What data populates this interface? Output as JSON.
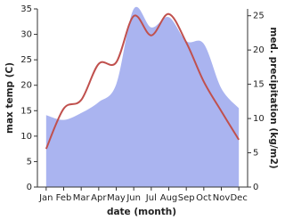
{
  "chart_data": {
    "type": "line-area",
    "x_label": "date (month)",
    "y_label": "max temp (C)",
    "y2_label": "med. precipitation (kg/m2)",
    "categories": [
      "Jan",
      "Feb",
      "Mar",
      "Apr",
      "May",
      "Jun",
      "Jul",
      "Aug",
      "Sep",
      "Oct",
      "Nov",
      "Dec"
    ],
    "series": [
      {
        "name": "max temp",
        "type": "line",
        "color": "#c0504d",
        "values": [
          7.5,
          15.4,
          17.1,
          24.2,
          24.5,
          33.6,
          29.8,
          34.0,
          28.4,
          20.7,
          14.9,
          9.3
        ]
      },
      {
        "name": "precipitation",
        "type": "area",
        "axis": "y2",
        "color": "#aab4f0",
        "values": [
          10.5,
          9.8,
          10.8,
          12.4,
          15.0,
          26.0,
          23.3,
          24.8,
          21.3,
          20.9,
          14.4,
          11.5
        ]
      }
    ],
    "ylim": [
      0,
      35
    ],
    "yticks": [
      0,
      5,
      10,
      15,
      20,
      25,
      30,
      35
    ],
    "y2lim": [
      0,
      26
    ],
    "y2ticks": [
      0,
      5,
      10,
      15,
      20,
      25
    ]
  }
}
